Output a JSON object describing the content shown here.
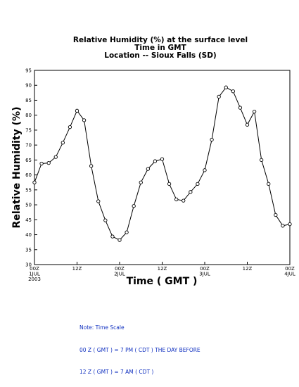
{
  "chart_data": {
    "type": "line",
    "title_lines": [
      "Relative Humidity (%) at the surface level",
      "Time in GMT",
      "Location -- Sioux Falls (SD)"
    ],
    "xlabel": "Time ( GMT )",
    "ylabel": "Relative Humidity (%)",
    "ylim": [
      30,
      95
    ],
    "yticks": [
      30,
      35,
      40,
      45,
      50,
      55,
      60,
      65,
      70,
      75,
      80,
      85,
      90,
      95
    ],
    "xlim": [
      0,
      72
    ],
    "xticks": [
      {
        "x": 0,
        "lines": [
          "00Z",
          "1JUL",
          "2003"
        ]
      },
      {
        "x": 12,
        "lines": [
          "12Z"
        ]
      },
      {
        "x": 24,
        "lines": [
          "00Z",
          "2JUL"
        ]
      },
      {
        "x": 36,
        "lines": [
          "12Z"
        ]
      },
      {
        "x": 48,
        "lines": [
          "00Z",
          "3JUL"
        ]
      },
      {
        "x": 60,
        "lines": [
          "12Z"
        ]
      },
      {
        "x": 72,
        "lines": [
          "00Z",
          "4JUL"
        ]
      }
    ],
    "grid": false,
    "marker": "open-circle",
    "series": [
      {
        "x": [
          0,
          2,
          4,
          6,
          8,
          10,
          12,
          14,
          16,
          18,
          20,
          22,
          24,
          26,
          28,
          30,
          32,
          34,
          36,
          38,
          40,
          42,
          44,
          46,
          48,
          50,
          52,
          54,
          56,
          58,
          60,
          62,
          64,
          66,
          68,
          70,
          72
        ],
        "values": [
          57.5,
          63.8,
          64.0,
          66.0,
          70.8,
          76.0,
          81.5,
          78.3,
          63.0,
          51.2,
          44.8,
          39.4,
          38.2,
          40.8,
          49.6,
          57.5,
          62.0,
          64.6,
          65.3,
          57.0,
          51.8,
          51.4,
          54.3,
          57.0,
          61.6,
          71.8,
          86.2,
          89.3,
          88.0,
          82.5,
          76.8,
          81.2,
          65.0,
          57.0,
          46.6,
          43.0,
          43.5
        ]
      }
    ]
  },
  "note": {
    "lines": [
      "Note: Time Scale",
      "00 Z ( GMT ) = 7 PM ( CDT ) THE DAY BEFORE",
      "12 Z ( GMT ) = 7 AM ( CDT )"
    ]
  }
}
